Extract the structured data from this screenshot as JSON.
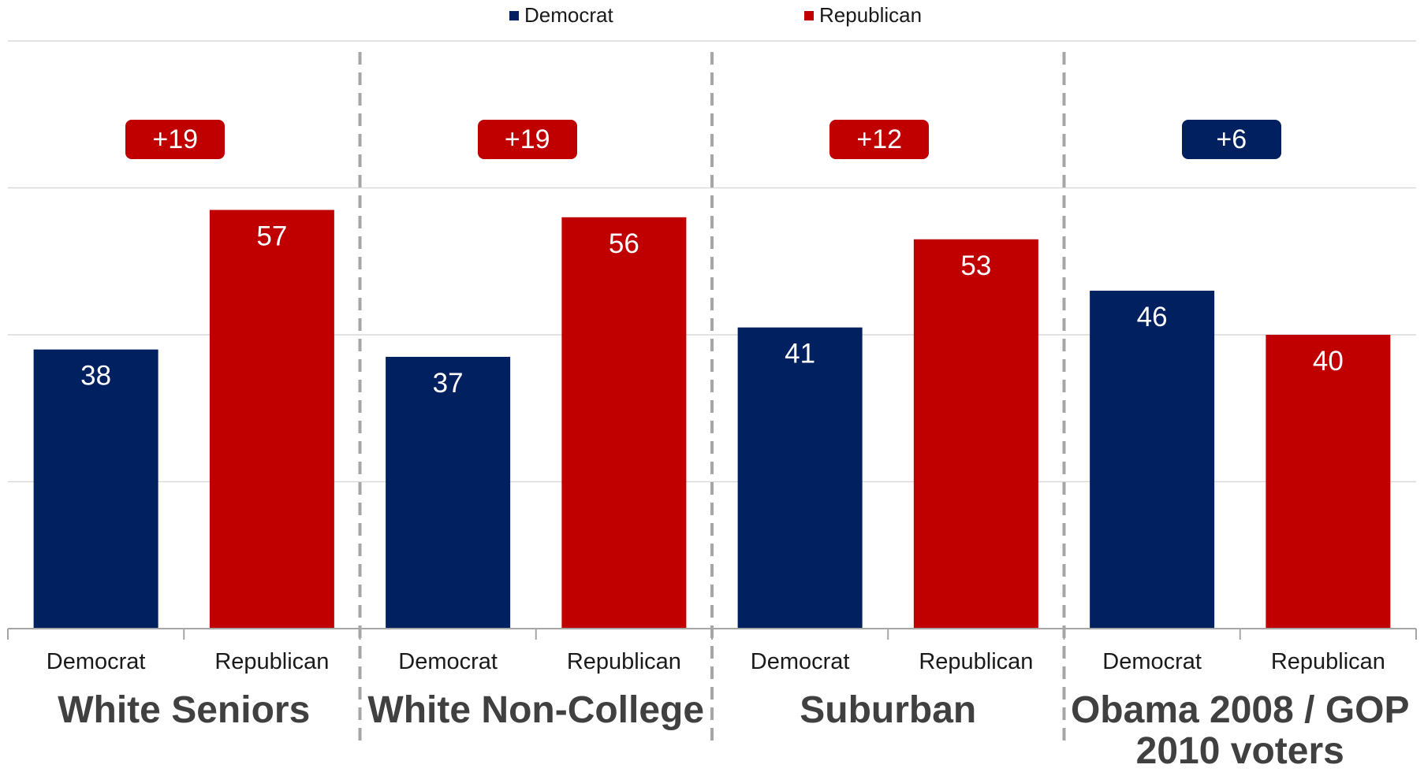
{
  "colors": {
    "democrat": "#002060",
    "republican": "#c00000",
    "gridline": "#d9d9d9",
    "axis": "#a6a6a6",
    "divider": "#a6a6a6"
  },
  "legend": {
    "democrat": "Democrat",
    "republican": "Republican"
  },
  "chart_data": {
    "type": "bar",
    "ylim": [
      0,
      80
    ],
    "grid": true,
    "legend_position": "top",
    "series_names": [
      "Democrat",
      "Republican"
    ],
    "groups": [
      {
        "label": "White Seniors",
        "margin": "+19",
        "margin_party": "republican",
        "bars": [
          {
            "category": "Democrat",
            "party": "democrat",
            "value": 38
          },
          {
            "category": "Republican",
            "party": "republican",
            "value": 57
          }
        ]
      },
      {
        "label": "White Non-College",
        "margin": "+19",
        "margin_party": "republican",
        "bars": [
          {
            "category": "Democrat",
            "party": "democrat",
            "value": 37
          },
          {
            "category": "Republican",
            "party": "republican",
            "value": 56
          }
        ]
      },
      {
        "label": "Suburban",
        "margin": "+12",
        "margin_party": "republican",
        "bars": [
          {
            "category": "Democrat",
            "party": "democrat",
            "value": 41
          },
          {
            "category": "Republican",
            "party": "republican",
            "value": 53
          }
        ]
      },
      {
        "label": "Obama 2008 / GOP 2010 voters",
        "label_lines": [
          "Obama 2008 / GOP",
          "2010 voters"
        ],
        "margin": "+6",
        "margin_party": "democrat",
        "bars": [
          {
            "category": "Democrat",
            "party": "democrat",
            "value": 46
          },
          {
            "category": "Republican",
            "party": "republican",
            "value": 40
          }
        ]
      }
    ]
  }
}
